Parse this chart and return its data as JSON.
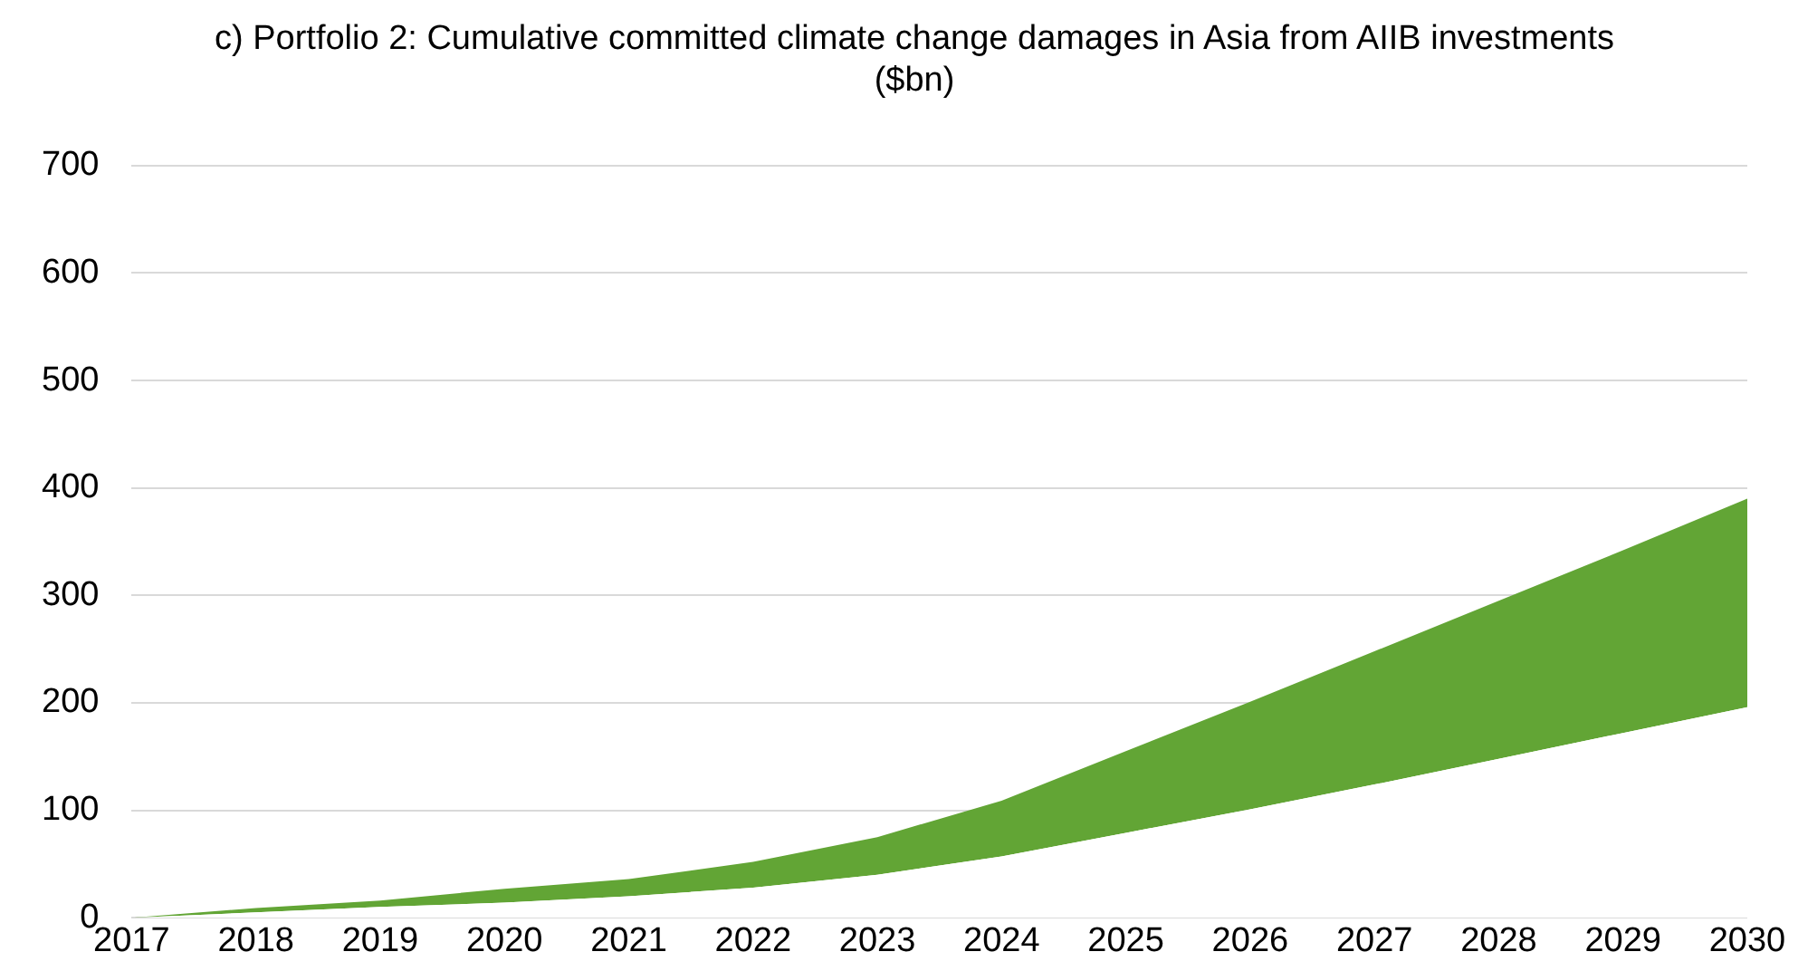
{
  "chart_data": {
    "type": "area",
    "title": "c) Portfolio 2: Cumulative committed climate change damages in Asia from AIIB investments ($bn)",
    "x": [
      2017,
      2018,
      2019,
      2020,
      2021,
      2022,
      2023,
      2024,
      2025,
      2026,
      2027,
      2028,
      2029,
      2030
    ],
    "stacked": true,
    "series": [
      {
        "color": "#ffffff",
        "values": [
          0,
          5,
          10,
          14,
          20,
          28,
          40,
          57,
          79,
          101,
          124,
          148,
          172,
          196
        ]
      },
      {
        "color": "#62a535",
        "values": [
          0,
          4,
          6,
          13,
          16,
          24,
          35,
          52,
          76,
          100,
          124,
          147,
          170,
          194
        ]
      }
    ],
    "xlim": [
      2017,
      2030
    ],
    "xticks": [
      2017,
      2018,
      2019,
      2020,
      2021,
      2022,
      2023,
      2024,
      2025,
      2026,
      2027,
      2028,
      2029,
      2030
    ],
    "ylim": [
      0,
      700
    ],
    "yticks": [
      0,
      100,
      200,
      300,
      400,
      500,
      600,
      700
    ],
    "grid": "y",
    "legend": false
  }
}
